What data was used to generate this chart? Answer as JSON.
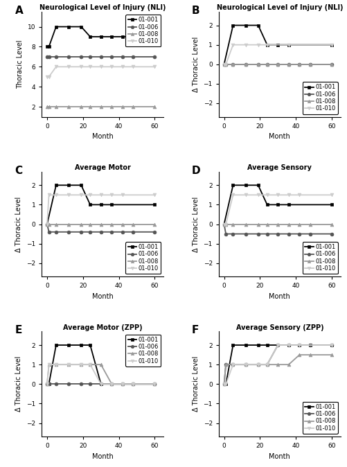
{
  "subjects": [
    "01-001",
    "01-006",
    "01-008",
    "01-010"
  ],
  "colors": [
    "#000000",
    "#555555",
    "#999999",
    "#cccccc"
  ],
  "markers": [
    "s",
    "o",
    "^",
    "v"
  ],
  "panel_A": {
    "title": "Neurological Level of Injury (NLI)",
    "ylabel": "Thoracic Level",
    "xlabel": "Month",
    "ylim": [
      11.5,
      1.0
    ],
    "yticks": [
      2,
      4,
      6,
      8,
      10
    ],
    "xticks": [
      0,
      20,
      40,
      60
    ],
    "legend_loc": "upper right",
    "invert_y": true,
    "data": {
      "01-001": {
        "x": [
          0,
          1,
          5,
          12,
          19,
          24,
          30,
          36,
          42,
          48,
          60
        ],
        "y": [
          8,
          8,
          10,
          10,
          10,
          9,
          9,
          9,
          9,
          9,
          9
        ]
      },
      "01-006": {
        "x": [
          0,
          1,
          5,
          12,
          19,
          24,
          30,
          36,
          42,
          48,
          60
        ],
        "y": [
          7,
          7,
          7,
          7,
          7,
          7,
          7,
          7,
          7,
          7,
          7
        ]
      },
      "01-008": {
        "x": [
          0,
          1,
          5,
          12,
          19,
          24,
          30,
          36,
          42,
          48,
          60
        ],
        "y": [
          2,
          2,
          2,
          2,
          2,
          2,
          2,
          2,
          2,
          2,
          2
        ]
      },
      "01-010": {
        "x": [
          0,
          1,
          5,
          12,
          19,
          24,
          30,
          36,
          42,
          48,
          60
        ],
        "y": [
          5,
          5,
          6,
          6,
          6,
          6,
          6,
          6,
          6,
          6,
          6
        ]
      }
    }
  },
  "panel_B": {
    "title": "Neurological Level of Injury (NLI)",
    "ylabel": "Δ Thoracic Level",
    "xlabel": "Month",
    "ylim": [
      -2.7,
      2.7
    ],
    "yticks": [
      -2,
      -1,
      0,
      1,
      2
    ],
    "xticks": [
      0,
      20,
      40,
      60
    ],
    "legend_loc": "lower right",
    "invert_y": false,
    "data": {
      "01-001": {
        "x": [
          0,
          5,
          12,
          19,
          24,
          30,
          36,
          60
        ],
        "y": [
          0,
          2,
          2,
          2,
          1,
          1,
          1,
          1
        ]
      },
      "01-006": {
        "x": [
          0,
          1,
          5,
          12,
          19,
          24,
          30,
          36,
          42,
          48,
          60
        ],
        "y": [
          0,
          0,
          0,
          0,
          0,
          0,
          0,
          0,
          0,
          0,
          0
        ]
      },
      "01-008": {
        "x": [
          0,
          1,
          5,
          12,
          19,
          24,
          30,
          36,
          42,
          48,
          60
        ],
        "y": [
          0,
          0,
          0,
          0,
          0,
          0,
          0,
          0,
          0,
          0,
          0
        ]
      },
      "01-010": {
        "x": [
          0,
          1,
          5,
          12,
          19,
          24,
          36,
          60
        ],
        "y": [
          0,
          0,
          1,
          1,
          1,
          1,
          1,
          1
        ]
      }
    }
  },
  "panel_C": {
    "title": "Average Motor",
    "ylabel": "Δ Thoracic Level",
    "xlabel": "Month",
    "ylim": [
      -2.7,
      2.7
    ],
    "yticks": [
      -2,
      -1,
      0,
      1,
      2
    ],
    "xticks": [
      0,
      20,
      40,
      60
    ],
    "legend_loc": "lower right",
    "invert_y": false,
    "data": {
      "01-001": {
        "x": [
          0,
          5,
          12,
          19,
          24,
          30,
          36,
          60
        ],
        "y": [
          0,
          2,
          2,
          2,
          1,
          1,
          1,
          1
        ]
      },
      "01-006": {
        "x": [
          0,
          1,
          5,
          12,
          19,
          24,
          30,
          36,
          42,
          48,
          60
        ],
        "y": [
          0,
          -0.4,
          -0.4,
          -0.4,
          -0.4,
          -0.4,
          -0.4,
          -0.4,
          -0.4,
          -0.4,
          -0.4
        ]
      },
      "01-008": {
        "x": [
          0,
          1,
          5,
          12,
          19,
          24,
          30,
          36,
          42,
          48,
          60
        ],
        "y": [
          0,
          0,
          0,
          0,
          0,
          0,
          0,
          0,
          0,
          0,
          0
        ]
      },
      "01-010": {
        "x": [
          0,
          1,
          5,
          12,
          19,
          24,
          30,
          36,
          42,
          60
        ],
        "y": [
          0,
          1.5,
          1.5,
          1.5,
          1.5,
          1.5,
          1.5,
          1.5,
          1.5,
          1.5
        ]
      }
    }
  },
  "panel_D": {
    "title": "Average Sensory",
    "ylabel": "Δ Thoracic Level",
    "xlabel": "Month",
    "ylim": [
      -2.7,
      2.7
    ],
    "yticks": [
      -2,
      -1,
      0,
      1,
      2
    ],
    "xticks": [
      0,
      20,
      40,
      60
    ],
    "legend_loc": "lower right",
    "invert_y": false,
    "data": {
      "01-001": {
        "x": [
          0,
          5,
          12,
          19,
          24,
          30,
          36,
          60
        ],
        "y": [
          0,
          2,
          2,
          2,
          1,
          1,
          1,
          1
        ]
      },
      "01-006": {
        "x": [
          0,
          1,
          5,
          12,
          19,
          24,
          30,
          36,
          42,
          48,
          60
        ],
        "y": [
          0,
          -0.5,
          -0.5,
          -0.5,
          -0.5,
          -0.5,
          -0.5,
          -0.5,
          -0.5,
          -0.5,
          -0.5
        ]
      },
      "01-008": {
        "x": [
          0,
          1,
          5,
          12,
          19,
          24,
          30,
          36,
          42,
          48,
          60
        ],
        "y": [
          0,
          0,
          0,
          0,
          0,
          0,
          0,
          0,
          0,
          0,
          0
        ]
      },
      "01-010": {
        "x": [
          0,
          1,
          5,
          12,
          19,
          24,
          30,
          36,
          42,
          60
        ],
        "y": [
          0,
          0,
          1.5,
          1.5,
          1.5,
          1.5,
          1.5,
          1.5,
          1.5,
          1.5
        ]
      }
    }
  },
  "panel_E": {
    "title": "Average Motor (ZPP)",
    "ylabel": "Δ Thoracic Level",
    "xlabel": "Month",
    "ylim": [
      -2.7,
      2.7
    ],
    "yticks": [
      -2,
      -1,
      0,
      1,
      2
    ],
    "xticks": [
      0,
      20,
      40,
      60
    ],
    "legend_loc": "upper right",
    "invert_y": false,
    "data": {
      "01-001": {
        "x": [
          0,
          1,
          5,
          12,
          19,
          24,
          30,
          36,
          42,
          48,
          60
        ],
        "y": [
          0,
          0,
          2,
          2,
          2,
          2,
          0,
          0,
          0,
          0,
          0
        ]
      },
      "01-006": {
        "x": [
          0,
          1,
          5,
          12,
          19,
          24,
          30,
          36,
          42,
          48,
          60
        ],
        "y": [
          0,
          0,
          0,
          0,
          0,
          0,
          0,
          0,
          0,
          0,
          0
        ]
      },
      "01-008": {
        "x": [
          0,
          1,
          5,
          12,
          19,
          24,
          30,
          36,
          42,
          48,
          60
        ],
        "y": [
          0,
          1,
          1,
          1,
          1,
          1,
          1,
          0,
          0,
          0,
          0
        ]
      },
      "01-010": {
        "x": [
          0,
          1,
          5,
          12,
          19,
          24,
          30,
          36,
          42,
          48,
          60
        ],
        "y": [
          0,
          1,
          1,
          1,
          1,
          1,
          0,
          0,
          0,
          0,
          0
        ]
      }
    }
  },
  "panel_F": {
    "title": "Average Sensory (ZPP)",
    "ylabel": "Δ Thoracic Level",
    "xlabel": "Month",
    "ylim": [
      -2.7,
      2.7
    ],
    "yticks": [
      -2,
      -1,
      0,
      1,
      2
    ],
    "xticks": [
      0,
      20,
      40,
      60
    ],
    "legend_loc": "lower right",
    "invert_y": false,
    "data": {
      "01-001": {
        "x": [
          0,
          1,
          5,
          12,
          19,
          24,
          36,
          42,
          48,
          60
        ],
        "y": [
          0,
          0,
          2,
          2,
          2,
          2,
          2,
          2,
          2,
          2
        ]
      },
      "01-006": {
        "x": [
          0,
          1,
          5,
          12,
          19,
          24,
          30,
          36,
          42,
          48,
          60
        ],
        "y": [
          0,
          1,
          1,
          1,
          1,
          1,
          2,
          2,
          2,
          2,
          2
        ]
      },
      "01-008": {
        "x": [
          0,
          1,
          5,
          12,
          19,
          24,
          30,
          36,
          42,
          48,
          60
        ],
        "y": [
          0,
          1,
          1,
          1,
          1,
          1,
          1,
          1,
          1.5,
          1.5,
          1.5
        ]
      },
      "01-010": {
        "x": [
          0,
          1,
          5,
          12,
          19,
          24,
          30,
          36,
          42,
          60
        ],
        "y": [
          0,
          0,
          1,
          1,
          1,
          1,
          2,
          2,
          2,
          2
        ]
      }
    }
  }
}
